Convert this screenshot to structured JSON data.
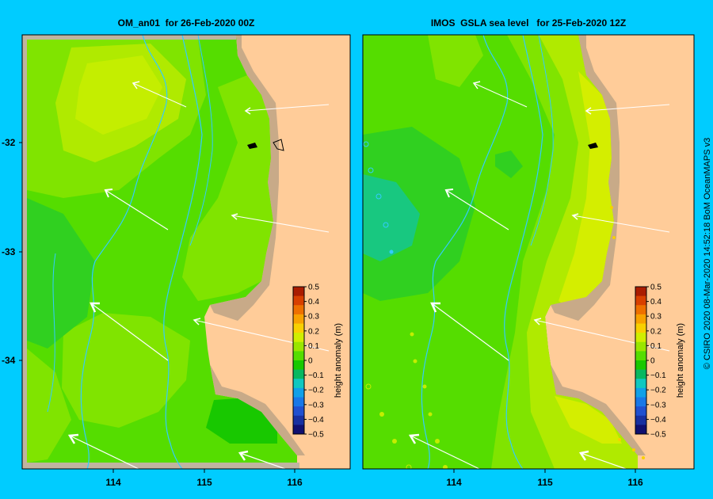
{
  "panels": {
    "left": {
      "title": "OM_an01  for 26-Feb-2020 00Z"
    },
    "right": {
      "title": "IMOS  GSLA sea level   for 25-Feb-2020 12Z"
    }
  },
  "axes": {
    "x_ticks": [
      "114",
      "115",
      "116"
    ],
    "y_ticks": [
      "-32",
      "-33",
      "-34"
    ]
  },
  "colorbar": {
    "label": "height anomaly (m)",
    "ticks": [
      "0.5",
      "0.4",
      "0.3",
      "0.2",
      "0.1",
      "0",
      "−0.1",
      "−0.2",
      "−0.3",
      "−0.4",
      "−0.5"
    ],
    "colors": [
      "#aa1c00",
      "#d84000",
      "#ee7000",
      "#f8a200",
      "#f8d000",
      "#d0ee00",
      "#9ae600",
      "#55dd00",
      "#18c800",
      "#08b860",
      "#10c8c0",
      "#10a0e8",
      "#1878e8",
      "#2050d0",
      "#1830a0",
      "#101070"
    ]
  },
  "colors": {
    "land": "#ffcc99",
    "shelf_land": "#c8aa88",
    "background": "#00ccff",
    "isobath": "#33ccff",
    "vector": "#ffffff"
  },
  "credit": "© CSIRO 2020   08-Mar-2020 14:52:18 BoM OceanMAPS v3"
}
